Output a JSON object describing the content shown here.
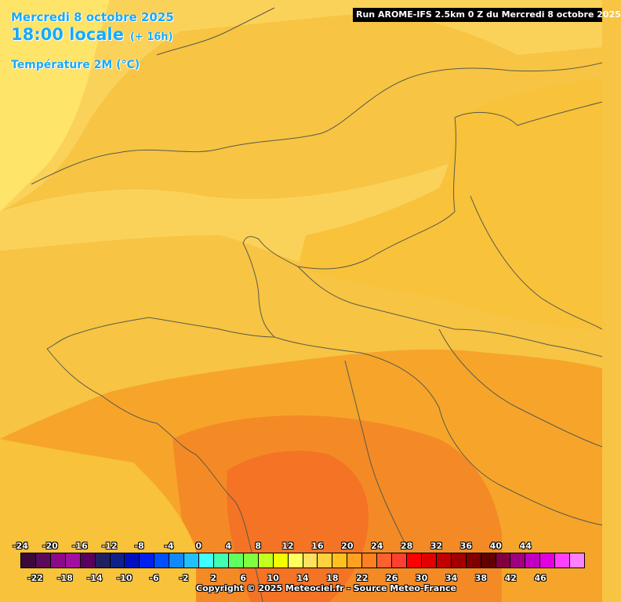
{
  "header": {
    "date": "Mercredi 8 octobre 2025",
    "time": "18:00 locale",
    "lead": "(+ 16h)",
    "parameter": "Température 2M (°C)"
  },
  "run_banner": "Run AROME-IFS 2.5km 0 Z du Mercredi 8 octobre 2025",
  "scale": {
    "top_labels": [
      "-24",
      "-20",
      "-16",
      "-12",
      "-8",
      "-4",
      "0",
      "4",
      "8",
      "12",
      "16",
      "20",
      "24",
      "28",
      "32",
      "36",
      "40",
      "44"
    ],
    "bottom_labels": [
      "-22",
      "-18",
      "-14",
      "-10",
      "-6",
      "-2",
      "2",
      "6",
      "10",
      "14",
      "18",
      "22",
      "26",
      "30",
      "34",
      "38",
      "42",
      "46"
    ],
    "colors": [
      "#3a0a3a",
      "#5a0a5a",
      "#8a0a8a",
      "#a010a0",
      "#5a0060",
      "#202060",
      "#10208a",
      "#0010c0",
      "#0020f0",
      "#0050ff",
      "#1088ff",
      "#20c0ff",
      "#40ffff",
      "#40ffb0",
      "#60ff60",
      "#80ff40",
      "#c0ff20",
      "#f0ff00",
      "#ffff60",
      "#ffe060",
      "#ffd040",
      "#ffc020",
      "#ffa020",
      "#ff8020",
      "#ff6030",
      "#ff4030",
      "#ff0000",
      "#e00000",
      "#c00000",
      "#a00000",
      "#800000",
      "#600000",
      "#800040",
      "#a00080",
      "#c000c0",
      "#e000e0",
      "#ff40ff",
      "#ff80ff"
    ]
  },
  "copyright": "Copyright © 2025 Meteociel.fr - Source Meteo-France",
  "map_colors": {
    "sea": "#f7c443",
    "pale": "#ffe46a",
    "light": "#fbd259",
    "mid": "#f8c23a",
    "warm": "#f6a52a",
    "hot": "#f48a25",
    "hotter": "#f47325",
    "border": "#5a5a4a"
  }
}
